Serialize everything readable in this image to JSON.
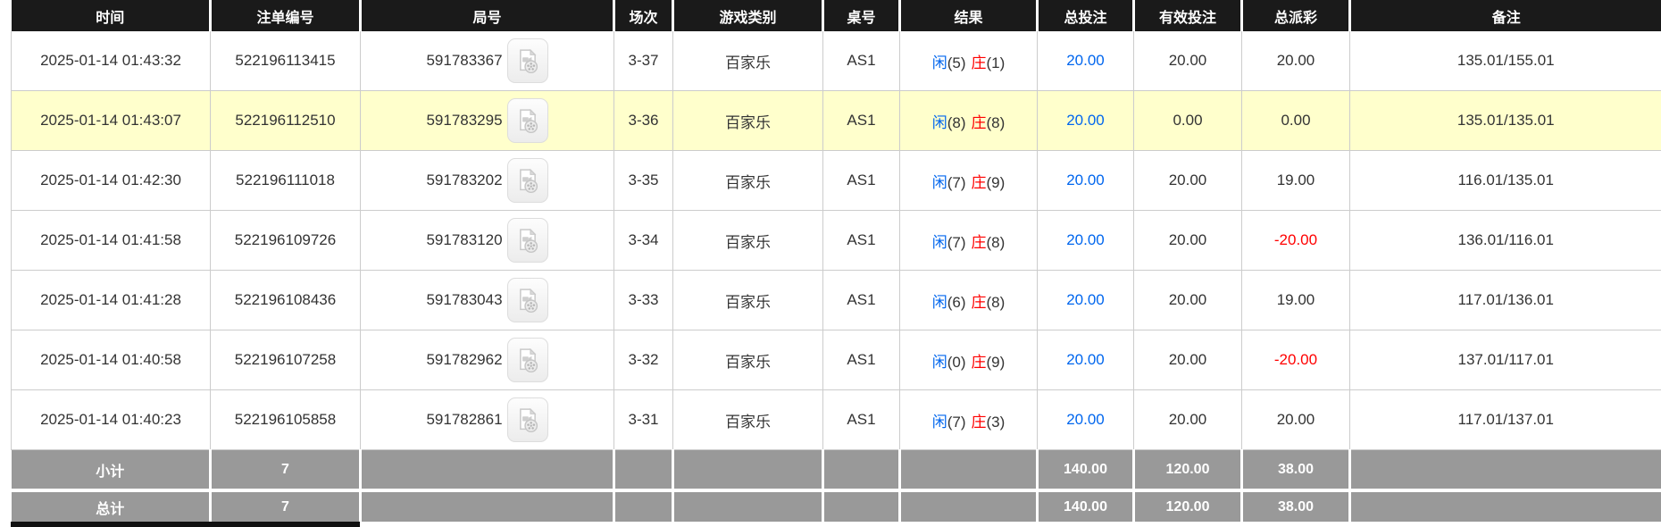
{
  "table": {
    "columns": [
      {
        "key": "time",
        "label": "时间"
      },
      {
        "key": "bet_no",
        "label": "注单编号"
      },
      {
        "key": "round_no",
        "label": "局号"
      },
      {
        "key": "session",
        "label": "场次"
      },
      {
        "key": "game_type",
        "label": "游戏类别"
      },
      {
        "key": "table_no",
        "label": "桌号"
      },
      {
        "key": "result",
        "label": "结果"
      },
      {
        "key": "total_bet",
        "label": "总投注"
      },
      {
        "key": "valid_bet",
        "label": "有效投注"
      },
      {
        "key": "total_payout",
        "label": "总派彩"
      },
      {
        "key": "remark",
        "label": "备注"
      }
    ],
    "rows": [
      {
        "time": "2025-01-14 01:43:32",
        "bet_no": "522196113415",
        "round_no": "591783367",
        "session": "3-37",
        "game_type": "百家乐",
        "table_no": "AS1",
        "result": {
          "player_label": "闲",
          "player_score": "(5)",
          "banker_label": "庄",
          "banker_score": "(1)"
        },
        "total_bet": "20.00",
        "valid_bet": "20.00",
        "total_payout": "20.00",
        "remark": "135.01/155.01",
        "highlighted": false
      },
      {
        "time": "2025-01-14 01:43:07",
        "bet_no": "522196112510",
        "round_no": "591783295",
        "session": "3-36",
        "game_type": "百家乐",
        "table_no": "AS1",
        "result": {
          "player_label": "闲",
          "player_score": "(8)",
          "banker_label": "庄",
          "banker_score": "(8)"
        },
        "total_bet": "20.00",
        "valid_bet": "0.00",
        "total_payout": "0.00",
        "remark": "135.01/135.01",
        "highlighted": true
      },
      {
        "time": "2025-01-14 01:42:30",
        "bet_no": "522196111018",
        "round_no": "591783202",
        "session": "3-35",
        "game_type": "百家乐",
        "table_no": "AS1",
        "result": {
          "player_label": "闲",
          "player_score": "(7)",
          "banker_label": "庄",
          "banker_score": "(9)"
        },
        "total_bet": "20.00",
        "valid_bet": "20.00",
        "total_payout": "19.00",
        "remark": "116.01/135.01",
        "highlighted": false
      },
      {
        "time": "2025-01-14 01:41:58",
        "bet_no": "522196109726",
        "round_no": "591783120",
        "session": "3-34",
        "game_type": "百家乐",
        "table_no": "AS1",
        "result": {
          "player_label": "闲",
          "player_score": "(7)",
          "banker_label": "庄",
          "banker_score": "(8)"
        },
        "total_bet": "20.00",
        "valid_bet": "20.00",
        "total_payout": "-20.00",
        "remark": "136.01/116.01",
        "highlighted": false
      },
      {
        "time": "2025-01-14 01:41:28",
        "bet_no": "522196108436",
        "round_no": "591783043",
        "session": "3-33",
        "game_type": "百家乐",
        "table_no": "AS1",
        "result": {
          "player_label": "闲",
          "player_score": "(6)",
          "banker_label": "庄",
          "banker_score": "(8)"
        },
        "total_bet": "20.00",
        "valid_bet": "20.00",
        "total_payout": "19.00",
        "remark": "117.01/136.01",
        "highlighted": false
      },
      {
        "time": "2025-01-14 01:40:58",
        "bet_no": "522196107258",
        "round_no": "591782962",
        "session": "3-32",
        "game_type": "百家乐",
        "table_no": "AS1",
        "result": {
          "player_label": "闲",
          "player_score": "(0)",
          "banker_label": "庄",
          "banker_score": "(9)"
        },
        "total_bet": "20.00",
        "valid_bet": "20.00",
        "total_payout": "-20.00",
        "remark": "137.01/117.01",
        "highlighted": false
      },
      {
        "time": "2025-01-14 01:40:23",
        "bet_no": "522196105858",
        "round_no": "591782861",
        "session": "3-31",
        "game_type": "百家乐",
        "table_no": "AS1",
        "result": {
          "player_label": "闲",
          "player_score": "(7)",
          "banker_label": "庄",
          "banker_score": "(3)"
        },
        "total_bet": "20.00",
        "valid_bet": "20.00",
        "total_payout": "20.00",
        "remark": "117.01/137.01",
        "highlighted": false
      }
    ],
    "footer_rows": [
      {
        "label": "小计",
        "count": "7",
        "total_bet": "140.00",
        "valid_bet": "120.00",
        "total_payout": "38.00"
      },
      {
        "label": "总计",
        "count": "7",
        "total_bet": "140.00",
        "valid_bet": "120.00",
        "total_payout": "38.00"
      }
    ]
  },
  "colors": {
    "header_bg": "#1a1a1a",
    "highlight_row_bg": "#ffffcc",
    "footer_bg": "#999999",
    "player_blue": "#0066ee",
    "banker_red": "#ff0000",
    "total_bet_blue": "#0066ee",
    "negative_payout_red": "#ff0000"
  },
  "icons": {
    "round_video": "video-record-icon"
  }
}
